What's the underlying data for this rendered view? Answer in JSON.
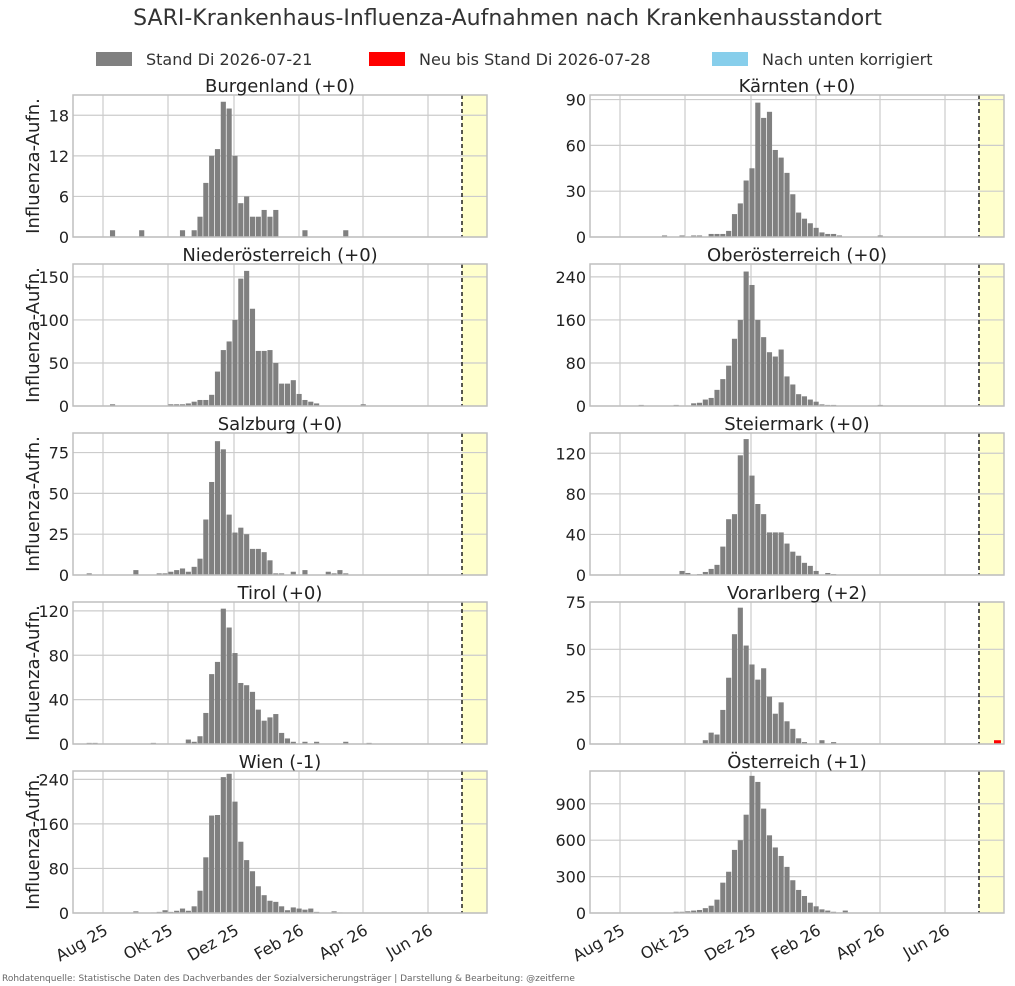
{
  "title": "SARI-Krankenhaus-Influenza-Aufnahmen nach Krankenhausstandort",
  "legend": [
    {
      "label": "Stand Di 2026-07-21",
      "color": "#808080"
    },
    {
      "label": "Neu bis Stand Di 2026-07-28",
      "color": "#ff0000"
    },
    {
      "label": "Nach unten korrigiert",
      "color": "#87ceeb"
    }
  ],
  "source": "Rohdatenquelle: Statistische Daten des Dachverbandes der Sozialversicherungsträger | Darstellung & Bearbeitung: @zeitferne",
  "ylabel": "Influenza-Aufn.",
  "x_tick_labels": [
    "Aug 25",
    "Okt 25",
    "Dez 25",
    "Feb 26",
    "Apr 26",
    "Jun 26"
  ],
  "colors": {
    "bar": "#808080",
    "new": "#ff0000",
    "corrected": "#87ceeb",
    "shade": "#ffffcc",
    "grid": "#cccccc",
    "frame": "#bfbfbf"
  },
  "chart_data": [
    {
      "type": "bar",
      "title": "Burgenland (+0)",
      "yticks": [
        0,
        6,
        12,
        18
      ],
      "ylim": [
        0,
        21
      ],
      "new": 0,
      "values": [
        0,
        0,
        0,
        0,
        0,
        0,
        1,
        0,
        0,
        0,
        0,
        1,
        0,
        0,
        0,
        0,
        0,
        0,
        1,
        0,
        1,
        3,
        8,
        12,
        13,
        20,
        19,
        12,
        5,
        6,
        3,
        3,
        4,
        3,
        4,
        0,
        0,
        0,
        0,
        1,
        0,
        0,
        0,
        0,
        0,
        0,
        1,
        0,
        0,
        0,
        0,
        0,
        0,
        0,
        0,
        0,
        0,
        0,
        0
      ]
    },
    {
      "type": "bar",
      "title": "Kärnten (+0)",
      "yticks": [
        0,
        30,
        60,
        90
      ],
      "ylim": [
        0,
        93
      ],
      "new": 0,
      "values": [
        0,
        0,
        0,
        0,
        0,
        0,
        0,
        0,
        0,
        0,
        0,
        0,
        1,
        0,
        0,
        1,
        0,
        1,
        1,
        0,
        2,
        2,
        2,
        4,
        15,
        22,
        37,
        45,
        88,
        78,
        82,
        57,
        52,
        42,
        28,
        16,
        12,
        9,
        6,
        3,
        2,
        2,
        1,
        0,
        0,
        0,
        0,
        0,
        0,
        1,
        0,
        0,
        0,
        0,
        0,
        0,
        0,
        0,
        0
      ]
    },
    {
      "type": "bar",
      "title": "Niederösterreich (+0)",
      "yticks": [
        0,
        50,
        100,
        150
      ],
      "ylim": [
        0,
        165
      ],
      "new": 0,
      "values": [
        0,
        0,
        0,
        0,
        0,
        0,
        2,
        0,
        0,
        0,
        0,
        0,
        0,
        0,
        0,
        0,
        2,
        2,
        2,
        3,
        5,
        7,
        7,
        13,
        40,
        65,
        75,
        100,
        148,
        157,
        113,
        64,
        64,
        65,
        50,
        26,
        26,
        30,
        14,
        7,
        5,
        3,
        0,
        0,
        0,
        0,
        0,
        0,
        0,
        2,
        0,
        0,
        0,
        0,
        0,
        0,
        0,
        0,
        0
      ]
    },
    {
      "type": "bar",
      "title": "Oberösterreich (+0)",
      "yticks": [
        0,
        80,
        160,
        240
      ],
      "ylim": [
        0,
        264
      ],
      "new": 0,
      "values": [
        0,
        0,
        0,
        0,
        0,
        0,
        0,
        0,
        2,
        0,
        0,
        0,
        0,
        0,
        2,
        0,
        0,
        5,
        6,
        12,
        15,
        30,
        50,
        75,
        125,
        160,
        250,
        225,
        160,
        128,
        100,
        92,
        105,
        55,
        40,
        22,
        18,
        12,
        8,
        3,
        2,
        2,
        0,
        0,
        0,
        0,
        0,
        0,
        0,
        2,
        0,
        0,
        0,
        0,
        0,
        0,
        0,
        0,
        0
      ]
    },
    {
      "type": "bar",
      "title": "Salzburg (+0)",
      "yticks": [
        0,
        25,
        50,
        75
      ],
      "ylim": [
        0,
        87
      ],
      "new": 0,
      "values": [
        0,
        0,
        1,
        0,
        0,
        0,
        0,
        0,
        0,
        0,
        3,
        0,
        0,
        0,
        1,
        1,
        2,
        3,
        4,
        2,
        5,
        10,
        34,
        57,
        82,
        77,
        37,
        26,
        29,
        25,
        16,
        16,
        14,
        9,
        1,
        1,
        0,
        2,
        0,
        3,
        0,
        0,
        0,
        2,
        1,
        3,
        1,
        0,
        0,
        0,
        0,
        0,
        0,
        0,
        0,
        0,
        0,
        0,
        0
      ]
    },
    {
      "type": "bar",
      "title": "Steiermark (+0)",
      "yticks": [
        0,
        40,
        80,
        120
      ],
      "ylim": [
        0,
        140
      ],
      "new": 0,
      "values": [
        0,
        0,
        0,
        0,
        0,
        0,
        0,
        0,
        0,
        0,
        0,
        0,
        0,
        0,
        0,
        4,
        2,
        0,
        1,
        3,
        6,
        10,
        28,
        55,
        60,
        118,
        134,
        98,
        70,
        60,
        42,
        42,
        42,
        31,
        23,
        19,
        12,
        9,
        4,
        0,
        2,
        1,
        0,
        0,
        0,
        0,
        0,
        0,
        0,
        0,
        0,
        0,
        0,
        0,
        0,
        0,
        0,
        0,
        0
      ]
    },
    {
      "type": "bar",
      "title": "Tirol (+0)",
      "yticks": [
        0,
        40,
        80,
        120
      ],
      "ylim": [
        0,
        128
      ],
      "new": 0,
      "values": [
        0,
        0,
        1,
        1,
        0,
        0,
        0,
        0,
        0,
        0,
        0,
        0,
        0,
        1,
        0,
        0,
        0,
        0,
        0,
        4,
        2,
        7,
        28,
        63,
        74,
        122,
        105,
        82,
        55,
        53,
        47,
        31,
        21,
        24,
        27,
        10,
        5,
        2,
        0,
        2,
        0,
        2,
        0,
        0,
        0,
        0,
        2,
        0,
        0,
        0,
        1,
        0,
        0,
        0,
        0,
        0,
        0,
        0,
        0
      ]
    },
    {
      "type": "bar",
      "title": "Vorarlberg (+2)",
      "yticks": [
        0,
        25,
        50,
        75
      ],
      "ylim": [
        0,
        75
      ],
      "new": 2,
      "values": [
        0,
        0,
        0,
        0,
        0,
        0,
        0,
        0,
        0,
        0,
        0,
        0,
        0,
        0,
        0,
        0,
        0,
        0,
        0,
        2,
        6,
        5,
        18,
        35,
        58,
        72,
        52,
        42,
        34,
        40,
        25,
        16,
        22,
        12,
        8,
        3,
        1,
        0,
        0,
        2,
        0,
        1,
        0,
        0,
        0,
        0,
        0,
        0,
        0,
        0,
        0,
        0,
        0,
        0,
        0,
        0,
        0,
        0,
        0
      ]
    },
    {
      "type": "bar",
      "title": "Wien (-1)",
      "yticks": [
        0,
        80,
        160,
        240
      ],
      "ylim": [
        0,
        255
      ],
      "new": 0,
      "values": [
        0,
        0,
        0,
        0,
        0,
        0,
        0,
        0,
        0,
        0,
        3,
        0,
        0,
        1,
        2,
        5,
        2,
        4,
        8,
        4,
        12,
        40,
        100,
        175,
        176,
        244,
        250,
        200,
        128,
        95,
        75,
        48,
        32,
        22,
        20,
        12,
        5,
        10,
        8,
        6,
        8,
        2,
        0,
        0,
        3,
        1,
        0,
        0,
        0,
        0,
        0,
        0,
        0,
        0,
        0,
        0,
        0,
        0,
        0
      ]
    },
    {
      "type": "bar",
      "title": "Österreich (+1)",
      "yticks": [
        0,
        300,
        600,
        900
      ],
      "ylim": [
        0,
        1170
      ],
      "new": 0,
      "values": [
        0,
        0,
        0,
        0,
        0,
        0,
        0,
        0,
        0,
        0,
        0,
        0,
        0,
        0,
        10,
        10,
        14,
        20,
        25,
        40,
        60,
        110,
        250,
        340,
        520,
        600,
        810,
        1130,
        1080,
        860,
        640,
        540,
        470,
        380,
        270,
        190,
        140,
        85,
        55,
        30,
        20,
        10,
        5,
        20,
        0,
        0,
        0,
        0,
        0,
        0,
        0,
        0,
        0,
        0,
        0,
        0,
        0,
        0,
        0
      ]
    }
  ]
}
